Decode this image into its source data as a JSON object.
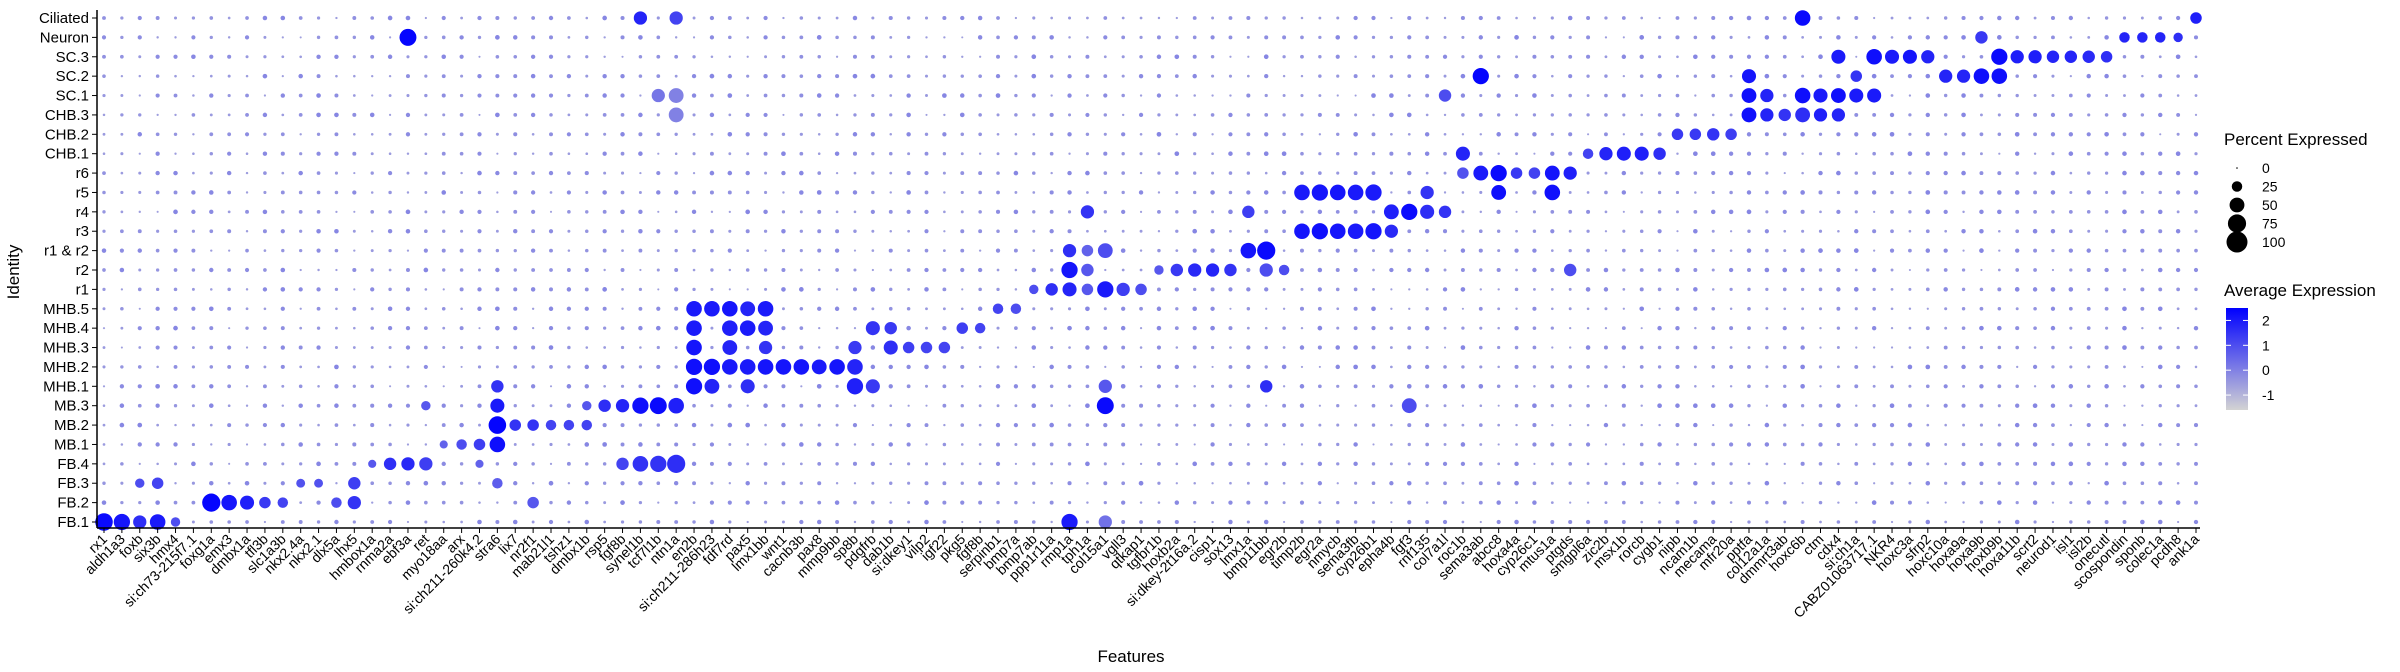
{
  "chart_data": {
    "type": "dotplot",
    "xlabel": "Features",
    "ylabel": "Identity",
    "identities": [
      "FB.1",
      "FB.2",
      "FB.3",
      "FB.4",
      "MB.1",
      "MB.2",
      "MB.3",
      "MHB.1",
      "MHB.2",
      "MHB.3",
      "MHB.4",
      "MHB.5",
      "r1",
      "r2",
      "r1 & r2",
      "r3",
      "r4",
      "r5",
      "r6",
      "CHB.1",
      "CHB.2",
      "CHB.3",
      "SC.1",
      "SC.2",
      "SC.3",
      "Neuron",
      "Ciliated"
    ],
    "features": [
      "rx1",
      "aldh1a3",
      "foxb",
      "six3b",
      "hmx4",
      "si:ch73-215f7.1",
      "foxg1a",
      "emx3",
      "dmbx1a",
      "tfl3b",
      "slc1a3b",
      "nkx2.4a",
      "nkx2.1",
      "dlx5a",
      "lhx5",
      "hmbox1a",
      "rnma2a",
      "ebf3a",
      "ret",
      "myo18aa",
      "arx",
      "si:ch211-260k4.2",
      "stra6",
      "lix7",
      "nr2f1",
      "mab21l1",
      "tshz1",
      "dmbx1b",
      "rsp5",
      "fgf8b",
      "synel1b",
      "tcf7l1b",
      "ntn1a",
      "en2b",
      "si:ch211-286h23",
      "fdf7rd",
      "pax5",
      "lmx1bb",
      "wnt1",
      "cacnb3b",
      "pax8",
      "mmp9bb",
      "sp8b",
      "pdgfrb",
      "dab1b",
      "si:dkey1",
      "vilp2",
      "igf22",
      "pkg5",
      "fgf8b",
      "serpinb1",
      "bmp7a",
      "bmp7ab",
      "ppp1r11a",
      "rmp1a",
      "tph1a",
      "col15a1",
      "vgll3",
      "qtkap1",
      "tgfbr1b",
      "hoxb2a",
      "si:dkey-2t16a.2",
      "cisp1",
      "sox13",
      "lmx1a",
      "bmp11bb",
      "egr2b",
      "timp2b",
      "egr2a",
      "nmycb",
      "sema3fb",
      "cyp26b1",
      "epha4b",
      "fgf3",
      "rnf135",
      "col7a1l",
      "roc1b",
      "sema3ab",
      "abcc8",
      "hoxa4a",
      "cyp26c1",
      "mtus1a",
      "ptgds",
      "smgpl6a",
      "zic2b",
      "msx1b",
      "rorcb",
      "cygb1",
      "nipb",
      "ncam1b",
      "mecama",
      "mfr20a",
      "pptfa",
      "col12a1a",
      "dmmrt3ab",
      "hoxc6b",
      "ctm",
      "cdx4",
      "si:ch1a",
      "CABZ01063717.1",
      "NKR4",
      "hoxc3a",
      "sfrp2",
      "hoxc10a",
      "hoxa9a",
      "hoxa9b",
      "hoxb9b",
      "hoxa11b",
      "scrt2",
      "neurod1",
      "isl1",
      "isl2b",
      "onecutl",
      "scospondin",
      "sponb",
      "colec1a",
      "pcdh8",
      "ank1a"
    ],
    "percent_legend": {
      "title": "Percent Expressed",
      "breaks": [
        0,
        25,
        50,
        75,
        100
      ]
    },
    "expression_legend": {
      "title": "Average Expression",
      "breaks": [
        2,
        1,
        0,
        -1
      ],
      "low_color": "#d3d3d3",
      "high_color": "#0000ff",
      "range": [
        -1.6,
        2.5
      ]
    },
    "hotspots": [
      [
        0,
        0,
        70,
        2.3
      ],
      [
        1,
        0,
        60,
        2.1
      ],
      [
        2,
        0,
        40,
        1.6
      ],
      [
        3,
        0,
        55,
        2.0
      ],
      [
        2,
        2,
        20,
        1.0
      ],
      [
        3,
        2,
        30,
        1.2
      ],
      [
        4,
        0,
        20,
        1.0
      ],
      [
        6,
        1,
        75,
        2.4
      ],
      [
        7,
        1,
        55,
        2.1
      ],
      [
        8,
        1,
        45,
        1.9
      ],
      [
        9,
        1,
        30,
        1.4
      ],
      [
        10,
        1,
        25,
        1.2
      ],
      [
        11,
        2,
        18,
        0.9
      ],
      [
        12,
        2,
        18,
        0.9
      ],
      [
        13,
        1,
        25,
        1.0
      ],
      [
        14,
        1,
        40,
        1.5
      ],
      [
        14,
        2,
        35,
        1.3
      ],
      [
        15,
        3,
        15,
        0.8
      ],
      [
        16,
        3,
        35,
        1.6
      ],
      [
        17,
        3,
        40,
        1.7
      ],
      [
        18,
        3,
        40,
        1.3
      ],
      [
        17,
        25,
        65,
        2.4
      ],
      [
        18,
        6,
        20,
        0.8
      ],
      [
        19,
        4,
        15,
        0.6
      ],
      [
        20,
        4,
        25,
        1.0
      ],
      [
        21,
        4,
        30,
        1.3
      ],
      [
        21,
        3,
        15,
        0.6
      ],
      [
        22,
        5,
        70,
        2.4
      ],
      [
        22,
        4,
        55,
        2.2
      ],
      [
        22,
        6,
        45,
        2.0
      ],
      [
        22,
        7,
        35,
        1.5
      ],
      [
        22,
        2,
        25,
        0.7
      ],
      [
        23,
        5,
        30,
        1.5
      ],
      [
        24,
        5,
        30,
        1.5
      ],
      [
        24,
        1,
        30,
        0.8
      ],
      [
        25,
        5,
        25,
        1.2
      ],
      [
        26,
        5,
        25,
        1.2
      ],
      [
        27,
        5,
        25,
        1.2
      ],
      [
        27,
        6,
        20,
        0.8
      ],
      [
        28,
        6,
        35,
        1.6
      ],
      [
        29,
        6,
        40,
        1.8
      ],
      [
        29,
        3,
        35,
        1.2
      ],
      [
        30,
        6,
        60,
        2.2
      ],
      [
        30,
        3,
        55,
        1.5
      ],
      [
        30,
        26,
        40,
        1.8
      ],
      [
        31,
        6,
        65,
        2.3
      ],
      [
        31,
        3,
        60,
        1.5
      ],
      [
        31,
        22,
        40,
        0.2
      ],
      [
        32,
        6,
        55,
        1.9
      ],
      [
        32,
        3,
        75,
        1.6
      ],
      [
        32,
        21,
        50,
        0.0
      ],
      [
        32,
        22,
        50,
        0.0
      ],
      [
        32,
        26,
        40,
        1.2
      ],
      [
        33,
        7,
        60,
        2.2
      ],
      [
        33,
        8,
        60,
        2.2
      ],
      [
        33,
        9,
        55,
        2.1
      ],
      [
        33,
        10,
        55,
        2.0
      ],
      [
        33,
        11,
        55,
        2.0
      ],
      [
        34,
        8,
        60,
        2.2
      ],
      [
        34,
        11,
        55,
        2.0
      ],
      [
        34,
        7,
        50,
        1.8
      ],
      [
        35,
        11,
        55,
        2.1
      ],
      [
        35,
        8,
        55,
        2.0
      ],
      [
        35,
        10,
        55,
        1.9
      ],
      [
        35,
        9,
        50,
        1.8
      ],
      [
        36,
        10,
        55,
        2.0
      ],
      [
        36,
        8,
        55,
        2.0
      ],
      [
        36,
        11,
        50,
        1.8
      ],
      [
        36,
        7,
        45,
        1.6
      ],
      [
        37,
        8,
        55,
        2.1
      ],
      [
        37,
        11,
        55,
        2.0
      ],
      [
        37,
        10,
        50,
        1.8
      ],
      [
        37,
        9,
        40,
        1.5
      ],
      [
        38,
        8,
        55,
        2.1
      ],
      [
        39,
        8,
        55,
        2.1
      ],
      [
        40,
        8,
        50,
        2.0
      ],
      [
        41,
        8,
        55,
        2.1
      ],
      [
        42,
        7,
        60,
        1.9
      ],
      [
        42,
        8,
        55,
        1.8
      ],
      [
        42,
        9,
        40,
        1.4
      ],
      [
        43,
        7,
        45,
        1.4
      ],
      [
        43,
        10,
        45,
        1.5
      ],
      [
        44,
        9,
        45,
        1.6
      ],
      [
        44,
        10,
        35,
        1.4
      ],
      [
        45,
        9,
        30,
        1.3
      ],
      [
        46,
        9,
        30,
        1.2
      ],
      [
        47,
        9,
        30,
        1.2
      ],
      [
        48,
        10,
        30,
        1.3
      ],
      [
        49,
        10,
        25,
        1.2
      ],
      [
        50,
        11,
        25,
        1.2
      ],
      [
        51,
        11,
        25,
        1.0
      ],
      [
        52,
        12,
        20,
        1.0
      ],
      [
        53,
        12,
        35,
        1.6
      ],
      [
        54,
        13,
        60,
        2.1
      ],
      [
        54,
        12,
        45,
        1.8
      ],
      [
        54,
        14,
        40,
        1.6
      ],
      [
        54,
        0,
        60,
        2.0
      ],
      [
        55,
        13,
        35,
        0.8
      ],
      [
        55,
        14,
        30,
        0.6
      ],
      [
        55,
        16,
        40,
        1.5
      ],
      [
        55,
        12,
        30,
        0.8
      ],
      [
        56,
        6,
        65,
        2.3
      ],
      [
        56,
        12,
        60,
        2.0
      ],
      [
        56,
        14,
        50,
        1.0
      ],
      [
        56,
        7,
        40,
        0.8
      ],
      [
        56,
        0,
        40,
        0.3
      ],
      [
        57,
        12,
        40,
        1.3
      ],
      [
        58,
        12,
        30,
        1.0
      ],
      [
        59,
        13,
        20,
        0.8
      ],
      [
        60,
        13,
        35,
        1.4
      ],
      [
        61,
        13,
        40,
        1.7
      ],
      [
        62,
        13,
        40,
        1.8
      ],
      [
        63,
        13,
        35,
        1.5
      ],
      [
        64,
        14,
        55,
        2.1
      ],
      [
        64,
        16,
        35,
        1.3
      ],
      [
        65,
        14,
        75,
        2.3
      ],
      [
        65,
        13,
        40,
        1.0
      ],
      [
        65,
        7,
        35,
        1.6
      ],
      [
        66,
        13,
        25,
        1.0
      ],
      [
        67,
        15,
        55,
        2.1
      ],
      [
        67,
        17,
        55,
        2.0
      ],
      [
        68,
        15,
        60,
        2.2
      ],
      [
        68,
        17,
        60,
        2.1
      ],
      [
        69,
        15,
        55,
        2.1
      ],
      [
        69,
        17,
        55,
        2.1
      ],
      [
        70,
        15,
        55,
        2.0
      ],
      [
        70,
        17,
        55,
        2.0
      ],
      [
        71,
        15,
        60,
        2.1
      ],
      [
        71,
        17,
        60,
        2.0
      ],
      [
        72,
        16,
        50,
        1.9
      ],
      [
        72,
        15,
        40,
        1.7
      ],
      [
        73,
        16,
        60,
        2.3
      ],
      [
        73,
        6,
        50,
        1.0
      ],
      [
        74,
        16,
        45,
        1.6
      ],
      [
        74,
        17,
        40,
        1.5
      ],
      [
        75,
        16,
        35,
        1.5
      ],
      [
        75,
        22,
        35,
        1.0
      ],
      [
        76,
        19,
        45,
        1.8
      ],
      [
        76,
        18,
        30,
        0.9
      ],
      [
        77,
        23,
        60,
        2.4
      ],
      [
        77,
        18,
        50,
        2.0
      ],
      [
        78,
        18,
        60,
        2.3
      ],
      [
        78,
        17,
        50,
        2.2
      ],
      [
        79,
        18,
        30,
        1.4
      ],
      [
        80,
        18,
        30,
        1.2
      ],
      [
        81,
        18,
        50,
        2.1
      ],
      [
        81,
        17,
        55,
        2.2
      ],
      [
        82,
        18,
        40,
        1.9
      ],
      [
        82,
        13,
        35,
        1.0
      ],
      [
        83,
        19,
        25,
        1.2
      ],
      [
        84,
        19,
        40,
        1.8
      ],
      [
        85,
        19,
        45,
        1.9
      ],
      [
        86,
        19,
        45,
        1.9
      ],
      [
        87,
        19,
        35,
        1.6
      ],
      [
        88,
        20,
        30,
        1.4
      ],
      [
        89,
        20,
        30,
        1.4
      ],
      [
        90,
        20,
        35,
        1.5
      ],
      [
        91,
        20,
        30,
        1.3
      ],
      [
        92,
        21,
        50,
        2.2
      ],
      [
        92,
        22,
        50,
        2.2
      ],
      [
        92,
        23,
        45,
        2.1
      ],
      [
        93,
        21,
        40,
        1.8
      ],
      [
        93,
        22,
        40,
        1.8
      ],
      [
        94,
        21,
        35,
        1.5
      ],
      [
        95,
        26,
        55,
        2.3
      ],
      [
        95,
        22,
        55,
        2.2
      ],
      [
        95,
        21,
        50,
        1.6
      ],
      [
        96,
        22,
        45,
        2.0
      ],
      [
        96,
        21,
        40,
        1.9
      ],
      [
        97,
        22,
        50,
        2.2
      ],
      [
        97,
        24,
        45,
        2.0
      ],
      [
        97,
        21,
        40,
        1.8
      ],
      [
        98,
        22,
        45,
        2.0
      ],
      [
        98,
        23,
        30,
        1.5
      ],
      [
        99,
        24,
        55,
        2.2
      ],
      [
        99,
        22,
        45,
        2.0
      ],
      [
        100,
        24,
        45,
        2.0
      ],
      [
        101,
        24,
        45,
        2.1
      ],
      [
        102,
        24,
        40,
        1.8
      ],
      [
        103,
        23,
        40,
        1.8
      ],
      [
        104,
        23,
        40,
        1.8
      ],
      [
        105,
        23,
        55,
        2.2
      ],
      [
        105,
        25,
        35,
        1.4
      ],
      [
        106,
        24,
        60,
        2.3
      ],
      [
        106,
        23,
        55,
        2.2
      ],
      [
        107,
        24,
        40,
        1.9
      ],
      [
        108,
        24,
        40,
        1.9
      ],
      [
        109,
        24,
        35,
        1.8
      ],
      [
        110,
        24,
        35,
        1.8
      ],
      [
        111,
        24,
        35,
        1.7
      ],
      [
        112,
        24,
        30,
        1.6
      ],
      [
        113,
        25,
        25,
        1.8
      ],
      [
        114,
        25,
        25,
        1.8
      ],
      [
        115,
        25,
        25,
        1.8
      ],
      [
        116,
        25,
        20,
        1.6
      ],
      [
        117,
        26,
        30,
        1.9
      ],
      [
        118,
        26,
        55,
        2.3
      ],
      [
        119,
        26,
        50,
        2.2
      ],
      [
        120,
        26,
        45,
        2.1
      ],
      [
        121,
        26,
        45,
        2.1
      ]
    ]
  }
}
